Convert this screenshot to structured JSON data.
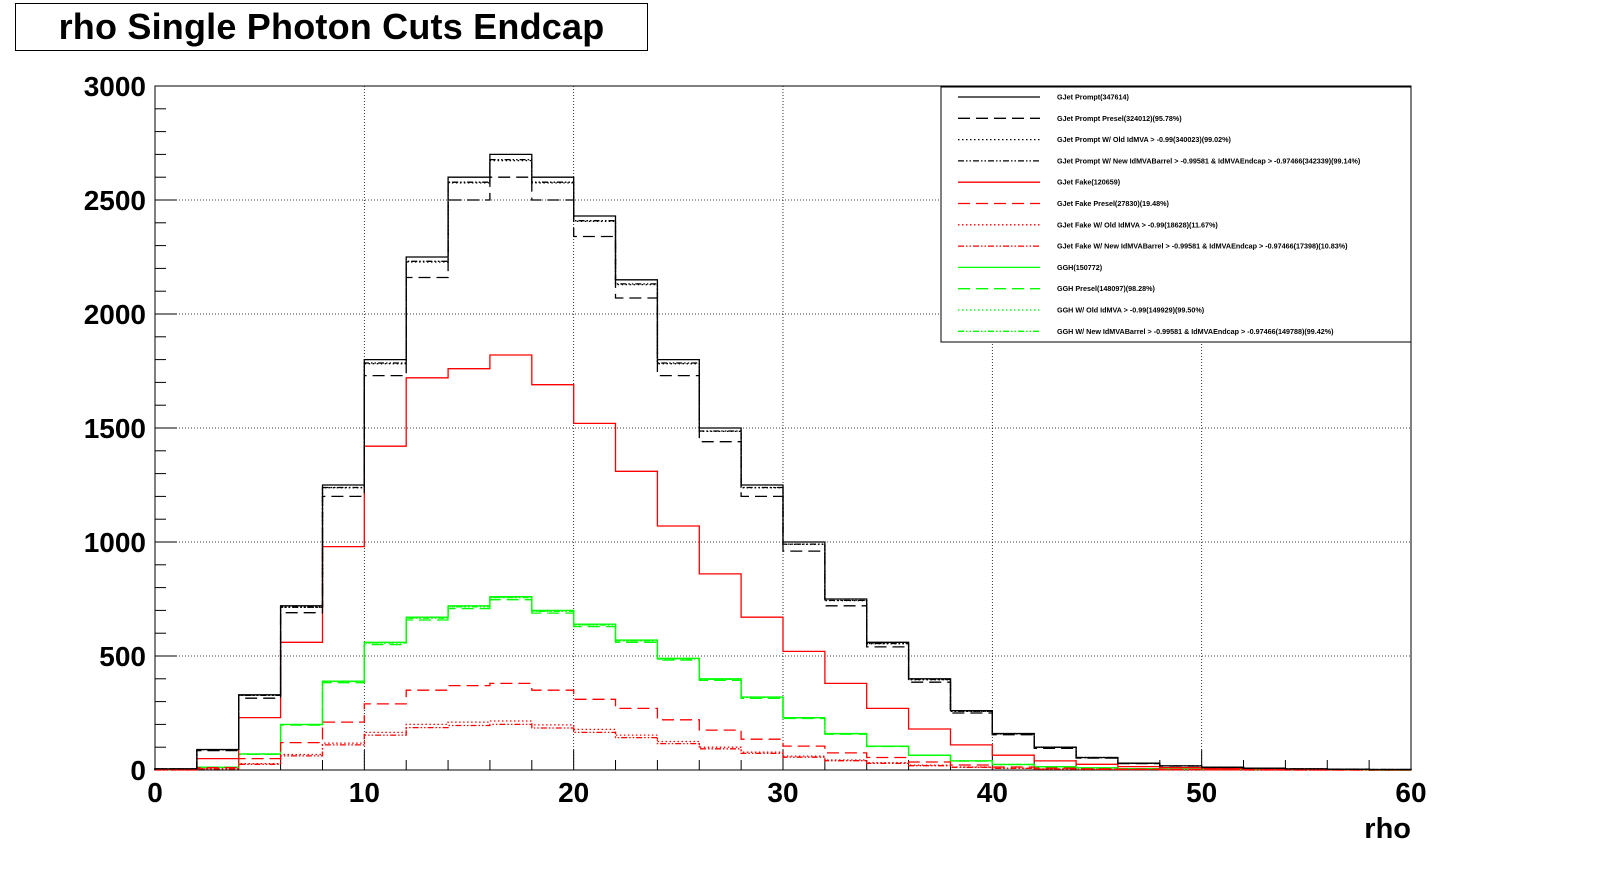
{
  "title": "rho Single Photon Cuts Endcap",
  "chart_data": {
    "type": "line",
    "title": "rho Single Photon Cuts Endcap",
    "xlabel": "rho",
    "ylabel": "",
    "xlim": [
      0,
      60
    ],
    "ylim": [
      0,
      3000
    ],
    "x_ticks": [
      "0",
      "10",
      "20",
      "30",
      "40",
      "50",
      "60"
    ],
    "y_ticks": [
      "0",
      "500",
      "1000",
      "1500",
      "2000",
      "2500",
      "3000"
    ],
    "grid": true,
    "legend_position": "top-right",
    "x": [
      1,
      3,
      5,
      7,
      9,
      11,
      13,
      15,
      17,
      19,
      21,
      23,
      25,
      27,
      29,
      31,
      33,
      35,
      37,
      39,
      41,
      43,
      45,
      47,
      49,
      51,
      53,
      55,
      57,
      59
    ],
    "series": [
      {
        "name": "GJet Prompt(347614)",
        "color": "#000000",
        "dash": "solid",
        "values": [
          5,
          90,
          330,
          720,
          1250,
          1800,
          2250,
          2600,
          2700,
          2600,
          2430,
          2150,
          1800,
          1500,
          1250,
          1000,
          750,
          560,
          400,
          260,
          160,
          100,
          55,
          30,
          18,
          12,
          8,
          5,
          3,
          2
        ]
      },
      {
        "name": "GJet Prompt Presel(324012)(95.78%)",
        "color": "#000000",
        "dash": "longdash",
        "values": [
          5,
          85,
          315,
          690,
          1200,
          1730,
          2160,
          2500,
          2600,
          2500,
          2340,
          2070,
          1730,
          1440,
          1200,
          960,
          720,
          540,
          385,
          250,
          155,
          95,
          52,
          28,
          17,
          11,
          7,
          5,
          3,
          2
        ]
      },
      {
        "name": "GJet Prompt W/ Old IdMVA > -0.99(340023)(99.02%)",
        "color": "#000000",
        "dash": "dotted",
        "values": [
          5,
          89,
          327,
          713,
          1238,
          1782,
          2228,
          2575,
          2673,
          2575,
          2406,
          2129,
          1782,
          1485,
          1238,
          990,
          743,
          554,
          396,
          257,
          158,
          99,
          54,
          30,
          18,
          12,
          8,
          5,
          3,
          2
        ]
      },
      {
        "name": "GJet Prompt W/ New IdMVABarrel > -0.99581 & IdMVAEndcap > -0.97466(342339)(99.14%)",
        "color": "#000000",
        "dash": "dashdotdot",
        "values": [
          5,
          89,
          327,
          714,
          1239,
          1785,
          2231,
          2578,
          2677,
          2578,
          2409,
          2132,
          1785,
          1487,
          1239,
          991,
          744,
          555,
          397,
          258,
          159,
          99,
          55,
          30,
          18,
          12,
          8,
          5,
          3,
          2
        ]
      },
      {
        "name": "GJet Fake(120659)",
        "color": "#ff0000",
        "dash": "solid",
        "values": [
          3,
          50,
          230,
          560,
          980,
          1420,
          1720,
          1760,
          1820,
          1690,
          1520,
          1310,
          1070,
          860,
          670,
          520,
          380,
          270,
          180,
          110,
          65,
          40,
          25,
          15,
          10,
          7,
          5,
          3,
          2,
          1
        ]
      },
      {
        "name": "GJet Fake Presel(27830)(19.48%)",
        "color": "#ff0000",
        "dash": "longdash",
        "values": [
          1,
          10,
          50,
          120,
          210,
          290,
          350,
          370,
          380,
          350,
          310,
          270,
          220,
          175,
          135,
          105,
          75,
          55,
          35,
          22,
          13,
          8,
          5,
          3,
          2,
          1,
          1,
          0,
          0,
          0
        ]
      },
      {
        "name": "GJet Fake W/ Old IdMVA > -0.99(18628)(11.67%)",
        "color": "#ff0000",
        "dash": "dotted",
        "values": [
          0,
          6,
          28,
          68,
          118,
          165,
          200,
          210,
          215,
          198,
          178,
          153,
          125,
          100,
          78,
          61,
          44,
          32,
          21,
          13,
          8,
          5,
          3,
          2,
          1,
          1,
          0,
          0,
          0,
          0
        ]
      },
      {
        "name": "GJet Fake W/ New IdMVABarrel > -0.99581 & IdMVAEndcap > -0.97466(17398)(10.83%)",
        "color": "#ff0000",
        "dash": "dashdotdot",
        "values": [
          0,
          5,
          25,
          62,
          110,
          153,
          186,
          195,
          200,
          184,
          165,
          142,
          116,
          93,
          73,
          56,
          41,
          29,
          19,
          12,
          7,
          4,
          3,
          2,
          1,
          1,
          0,
          0,
          0,
          0
        ]
      },
      {
        "name": "GGH(150772)",
        "color": "#00ff00",
        "dash": "solid",
        "values": [
          1,
          12,
          70,
          200,
          390,
          560,
          670,
          720,
          760,
          700,
          640,
          570,
          490,
          400,
          320,
          230,
          160,
          105,
          65,
          40,
          24,
          14,
          9,
          6,
          4,
          3,
          2,
          1,
          1,
          0
        ]
      },
      {
        "name": "GGH Presel(148097)(98.28%)",
        "color": "#00ff00",
        "dash": "longdash",
        "values": [
          1,
          12,
          69,
          197,
          383,
          550,
          658,
          708,
          747,
          688,
          629,
          560,
          482,
          393,
          314,
          226,
          157,
          103,
          64,
          39,
          24,
          14,
          9,
          6,
          4,
          3,
          2,
          1,
          1,
          0
        ]
      },
      {
        "name": "GGH W/ Old IdMVA > -0.99(149929)(99.50%)",
        "color": "#00ff00",
        "dash": "dotted",
        "values": [
          1,
          12,
          70,
          199,
          388,
          557,
          667,
          716,
          756,
          697,
          637,
          567,
          488,
          398,
          318,
          229,
          159,
          104,
          65,
          40,
          24,
          14,
          9,
          6,
          4,
          3,
          2,
          1,
          1,
          0
        ]
      },
      {
        "name": "GGH W/ New IdMVABarrel > -0.99581 & IdMVAEndcap > -0.97466(149788)(99.42%)",
        "color": "#00ff00",
        "dash": "dashdotdot",
        "values": [
          1,
          12,
          70,
          199,
          388,
          557,
          666,
          716,
          756,
          696,
          636,
          567,
          487,
          398,
          318,
          229,
          159,
          104,
          65,
          40,
          24,
          14,
          9,
          6,
          4,
          3,
          2,
          1,
          1,
          0
        ]
      }
    ]
  }
}
